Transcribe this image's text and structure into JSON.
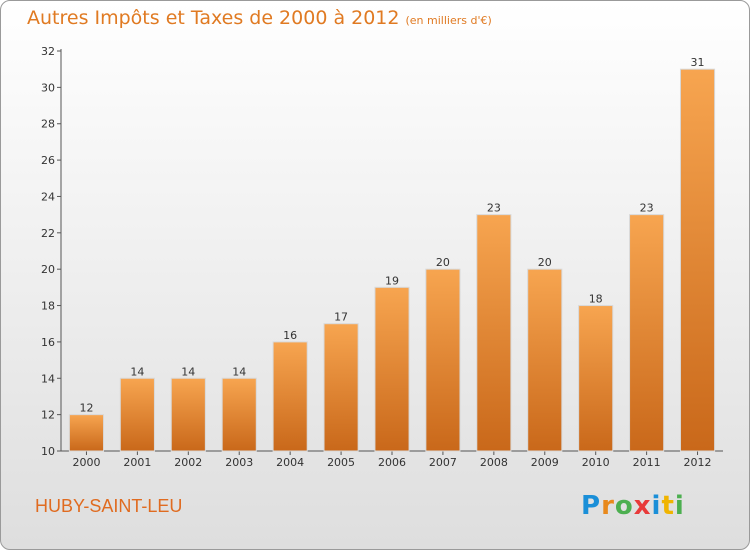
{
  "title": {
    "main": "Autres Impôts et Taxes de 2000 à 2012",
    "unit": "(en milliers d'€)"
  },
  "city": "HUBY-SAINT-LEU",
  "logo": {
    "text": "Proxiti",
    "colors": [
      "#1a8fd8",
      "#e8891c",
      "#4caf50",
      "#e83a3a",
      "#1a8fd8",
      "#f0b400",
      "#4caf50"
    ]
  },
  "chart_data": {
    "type": "bar",
    "categories": [
      "2000",
      "2001",
      "2002",
      "2003",
      "2004",
      "2005",
      "2006",
      "2007",
      "2008",
      "2009",
      "2010",
      "2011",
      "2012"
    ],
    "values": [
      12,
      14,
      14,
      14,
      16,
      17,
      19,
      20,
      23,
      20,
      18,
      23,
      31
    ],
    "title": "Autres Impôts et Taxes de 2000 à 2012",
    "xlabel": "",
    "ylabel": "",
    "ylim": [
      10,
      32
    ],
    "yticks": [
      10,
      12,
      14,
      16,
      18,
      20,
      22,
      24,
      26,
      28,
      30,
      32
    ],
    "grid": false,
    "bar_color_top": "#f7a550",
    "bar_color_bottom": "#c9681a"
  }
}
